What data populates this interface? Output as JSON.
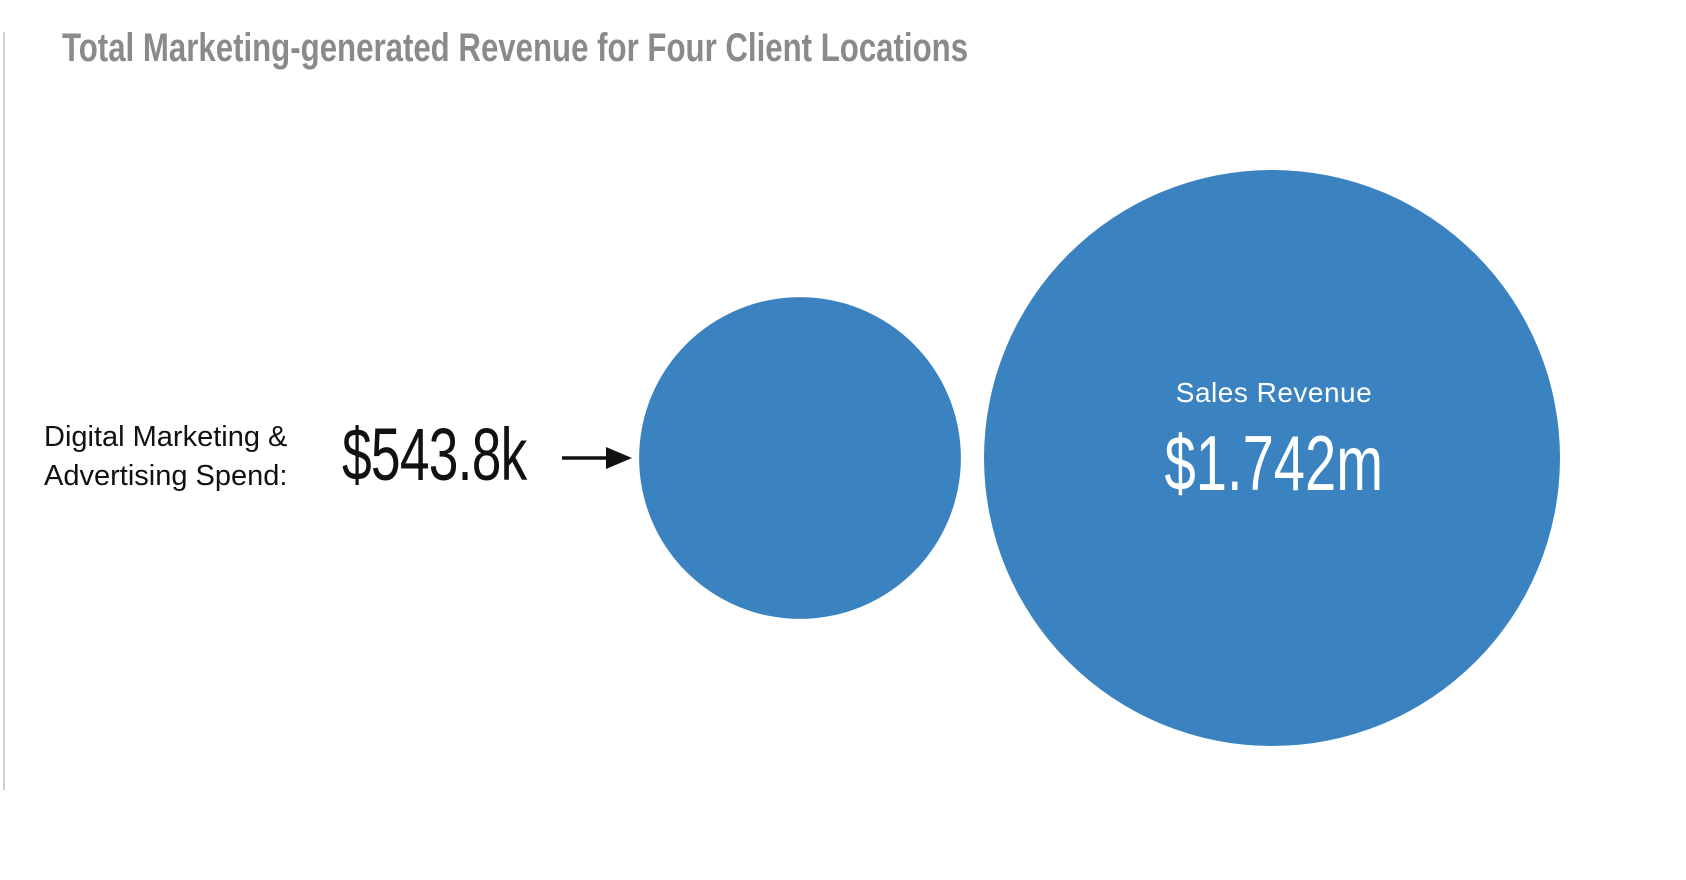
{
  "chart_data": {
    "type": "bubble",
    "title": "Total Marketing-generated Revenue for Four Client Locations",
    "color": "#3a83c0",
    "series": [
      {
        "name": "Digital Marketing & Advertising Spend",
        "label_lines": [
          "Digital Marketing &",
          "Advertising Spend:"
        ],
        "value": 543800,
        "display": "$543.8k"
      },
      {
        "name": "Sales Revenue",
        "label_lines": [
          "Sales Revenue"
        ],
        "value": 1742000,
        "display": "$1.742m"
      }
    ]
  }
}
